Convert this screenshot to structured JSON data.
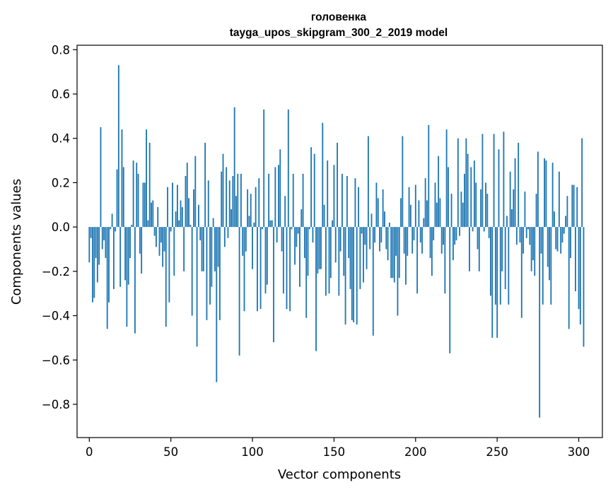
{
  "chart_data": {
    "type": "bar",
    "title": "головенка",
    "subtitle": "tayga_upos_skipgram_300_2_2019 model",
    "xlabel": "Vector components",
    "ylabel": "Components values",
    "xlim": [
      -7.5,
      314.5
    ],
    "ylim": [
      -0.95,
      0.82
    ],
    "xticks": [
      0,
      50,
      100,
      150,
      200,
      250,
      300
    ],
    "yticks": [
      -0.8,
      -0.6,
      -0.4,
      -0.2,
      0.0,
      0.2,
      0.4,
      0.6,
      0.8
    ],
    "ytick_labels": [
      "−0.8",
      "−0.6",
      "−0.4",
      "−0.2",
      "0.0",
      "0.2",
      "0.4",
      "0.6",
      "0.8"
    ],
    "color": "#1f77b4",
    "grid": false,
    "legend": "none",
    "values": [
      -0.16,
      -0.05,
      -0.34,
      -0.32,
      -0.14,
      -0.25,
      -0.17,
      0.45,
      -0.1,
      -0.06,
      -0.14,
      -0.46,
      -0.34,
      -0.01,
      0.06,
      -0.28,
      -0.02,
      0.26,
      0.73,
      -0.27,
      0.44,
      0.27,
      -0.24,
      -0.45,
      -0.26,
      -0.14,
      0.01,
      0.3,
      -0.48,
      0.29,
      0.24,
      -0.12,
      -0.21,
      0.2,
      0.2,
      0.44,
      0.03,
      0.38,
      0.11,
      0.12,
      -0.04,
      -0.09,
      0.09,
      -0.13,
      -0.07,
      -0.18,
      -0.11,
      -0.45,
      0.18,
      -0.34,
      -0.02,
      0.2,
      -0.22,
      0.07,
      0.19,
      0.03,
      0.12,
      0.09,
      -0.2,
      0.23,
      0.29,
      0.13,
      0.01,
      -0.4,
      0.17,
      0.32,
      -0.54,
      0.1,
      -0.06,
      -0.2,
      -0.2,
      0.38,
      -0.42,
      0.21,
      -0.35,
      -0.27,
      0.04,
      -0.2,
      -0.7,
      -0.18,
      -0.42,
      0.25,
      0.33,
      -0.09,
      0.27,
      -0.05,
      0.21,
      0.08,
      0.23,
      0.54,
      0.14,
      0.24,
      -0.58,
      0.24,
      -0.13,
      -0.38,
      -0.11,
      0.17,
      0.05,
      0.15,
      -0.19,
      0.02,
      0.18,
      -0.38,
      0.22,
      -0.37,
      -0.01,
      0.53,
      -0.3,
      -0.26,
      0.24,
      0.03,
      0.03,
      -0.52,
      0.27,
      -0.07,
      0.28,
      0.35,
      -0.11,
      -0.3,
      0.14,
      -0.37,
      0.53,
      -0.38,
      -0.01,
      0.24,
      -0.17,
      -0.09,
      -0.03,
      -0.27,
      0.08,
      0.24,
      -0.14,
      -0.41,
      -0.22,
      -0.01,
      0.36,
      -0.07,
      0.33,
      -0.56,
      -0.21,
      -0.19,
      -0.19,
      0.47,
      0.1,
      -0.31,
      0.3,
      -0.3,
      -0.23,
      0.03,
      0.28,
      -0.16,
      0.38,
      -0.31,
      -0.11,
      0.24,
      -0.22,
      -0.44,
      0.23,
      -0.14,
      -0.28,
      -0.42,
      -0.43,
      0.22,
      -0.44,
      0.18,
      -0.28,
      -0.03,
      -0.25,
      -0.08,
      -0.19,
      0.41,
      -0.1,
      0.06,
      -0.49,
      -0.07,
      0.2,
      0.13,
      -0.11,
      -0.07,
      0.17,
      0.07,
      -0.1,
      -0.15,
      0.02,
      -0.23,
      -0.23,
      -0.25,
      -0.13,
      -0.4,
      -0.23,
      0.13,
      0.41,
      -0.12,
      -0.26,
      -0.13,
      0.18,
      0.1,
      -0.12,
      -0.06,
      0.19,
      -0.3,
      0.12,
      -0.07,
      -0.12,
      0.04,
      0.22,
      0.12,
      0.46,
      -0.14,
      -0.22,
      -0.06,
      0.2,
      0.11,
      0.32,
      0.13,
      -0.12,
      -0.08,
      -0.3,
      0.44,
      0.27,
      -0.57,
      0.15,
      -0.15,
      -0.08,
      -0.06,
      0.4,
      -0.04,
      0.16,
      0.11,
      0.24,
      0.4,
      0.33,
      -0.2,
      0.27,
      -0.02,
      0.3,
      0.2,
      -0.1,
      -0.2,
      0.17,
      0.42,
      -0.02,
      0.2,
      0.15,
      -0.05,
      -0.31,
      -0.5,
      0.42,
      -0.35,
      -0.5,
      0.35,
      -0.35,
      -0.2,
      0.43,
      -0.28,
      0.05,
      -0.35,
      0.25,
      0.08,
      0.17,
      0.31,
      -0.08,
      0.38,
      -0.07,
      -0.41,
      -0.12,
      0.16,
      -0.05,
      -0.01,
      -0.08,
      -0.2,
      -0.15,
      -0.22,
      0.15,
      0.34,
      -0.86,
      -0.12,
      -0.35,
      0.31,
      0.3,
      -0.18,
      -0.24,
      -0.35,
      0.29,
      0.07,
      -0.1,
      -0.11,
      0.25,
      -0.12,
      -0.07,
      -0.03,
      0.05,
      0.14,
      -0.46,
      -0.14,
      0.19,
      0.19,
      -0.29,
      0.18,
      -0.37,
      -0.44,
      0.4,
      -0.54
    ]
  }
}
